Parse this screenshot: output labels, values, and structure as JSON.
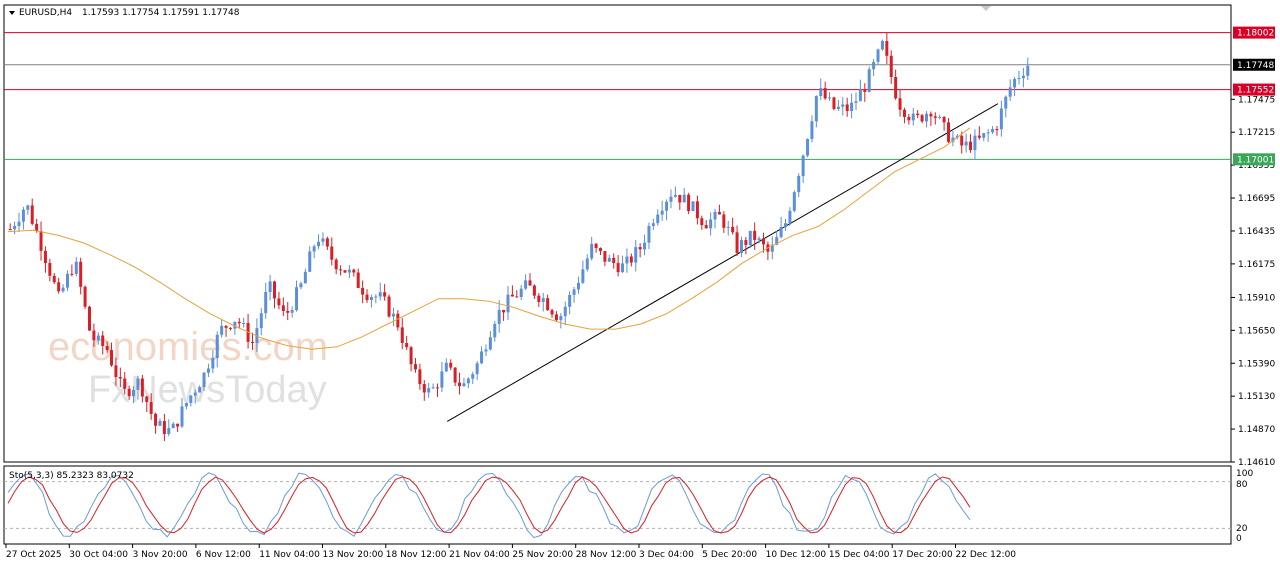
{
  "header": {
    "symbol": "EURUSD,H4",
    "ohlc": "1.17593 1.17754 1.17591 1.17748"
  },
  "oscillator": {
    "label": "Sto(5,3,3) 85.2323 83.0732",
    "levels": [
      "100",
      "80",
      "20",
      "0"
    ]
  },
  "watermark": {
    "brand": "economies.com",
    "sub": "FxNewsToday"
  },
  "price_tags": [
    {
      "text": "1.18002",
      "bg": "#d80027",
      "fg": "#ffffff"
    },
    {
      "text": "1.17748",
      "bg": "#000000",
      "fg": "#ffffff"
    },
    {
      "text": "1.17552",
      "bg": "#d80027",
      "fg": "#ffffff"
    },
    {
      "text": "1.17001",
      "bg": "#3aa657",
      "fg": "#ffffff"
    }
  ],
  "y_ticks": [
    "1.17475",
    "1.17215",
    "1.16955",
    "1.16695",
    "1.16435",
    "1.16175",
    "1.15910",
    "1.15650",
    "1.15390",
    "1.15130",
    "1.14870",
    "1.14610"
  ],
  "x_ticks": [
    "27 Oct 2025",
    "30 Oct 04:00",
    "3 Nov 20:00",
    "6 Nov 12:00",
    "11 Nov 04:00",
    "13 Nov 20:00",
    "18 Nov 12:00",
    "21 Nov 04:00",
    "25 Nov 20:00",
    "28 Nov 12:00",
    "3 Dec 04:00",
    "5 Dec 20:00",
    "10 Dec 12:00",
    "15 Dec 04:00",
    "17 Dec 20:00",
    "22 Dec 12:00"
  ],
  "chart_data": {
    "type": "candlestick",
    "symbol": "EURUSD",
    "timeframe": "H4",
    "ylim": [
      1.1461,
      1.1822
    ],
    "horizontal_levels": [
      {
        "value": 1.18002,
        "color": "#d80027"
      },
      {
        "value": 1.17552,
        "color": "#d80027"
      },
      {
        "value": 1.17001,
        "color": "#3aa657"
      },
      {
        "value": 1.17748,
        "color": "#808080"
      }
    ],
    "trendline": {
      "from": [
        0.3612,
        1.1493
      ],
      "to": [
        0.81,
        1.1744
      ]
    },
    "close_path": [
      1.1645,
      1.1665,
      1.163,
      1.159,
      1.162,
      1.156,
      1.155,
      1.1515,
      1.1525,
      1.149,
      1.1485,
      1.151,
      1.153,
      1.1565,
      1.1575,
      1.1555,
      1.16,
      1.1575,
      1.16,
      1.164,
      1.162,
      1.161,
      1.1595,
      1.159,
      1.157,
      1.153,
      1.1515,
      1.1535,
      1.152,
      1.154,
      1.1575,
      1.159,
      1.16,
      1.159,
      1.1575,
      1.16,
      1.163,
      1.162,
      1.1615,
      1.163,
      1.166,
      1.1675,
      1.1665,
      1.165,
      1.1655,
      1.163,
      1.164,
      1.1625,
      1.165,
      1.17,
      1.1755,
      1.174,
      1.174,
      1.176,
      1.179,
      1.1745,
      1.173,
      1.174,
      1.172,
      1.171,
      1.1715,
      1.1725,
      1.176,
      1.1775
    ],
    "candles_count": 232,
    "ma_path": [
      1.1643,
      1.1644,
      1.164,
      1.1634,
      1.1625,
      1.1615,
      1.1603,
      1.159,
      1.1578,
      1.1568,
      1.1559,
      1.1553,
      1.155,
      1.1552,
      1.156,
      1.157,
      1.158,
      1.159,
      1.159,
      1.1588,
      1.1583,
      1.1576,
      1.157,
      1.1566,
      1.1566,
      1.157,
      1.1578,
      1.159,
      1.1603,
      1.1618,
      1.163,
      1.164,
      1.1647,
      1.166,
      1.1675,
      1.169,
      1.17,
      1.171,
      1.1725
    ],
    "stochastic": {
      "params": "5,3,3",
      "main": 85.2323,
      "signal": 83.0732,
      "levels": [
        80,
        20
      ]
    }
  }
}
